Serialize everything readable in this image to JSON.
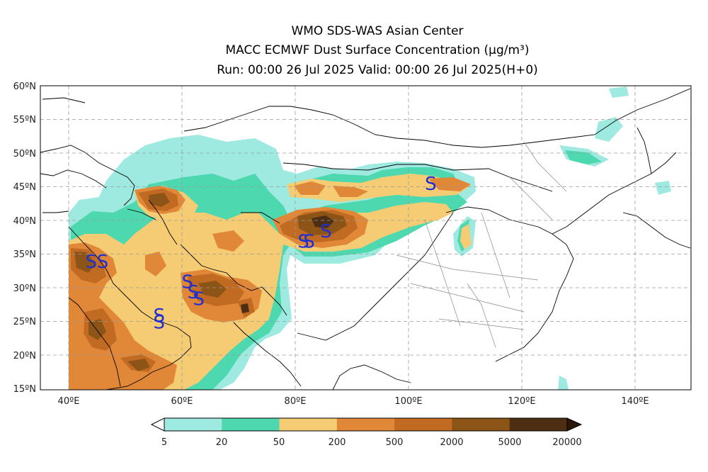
{
  "title": {
    "line1": "WMO SDS-WAS Asian Center",
    "line2": "MACC ECMWF Dust Surface Concentration (μg/m³)",
    "line3": "Run: 00:00 26 Jul 2025     Valid: 00:00 26 Jul 2025(H+0)"
  },
  "map": {
    "lon_range": [
      35,
      150
    ],
    "lat_range": [
      15,
      60
    ],
    "lon_ticks": [
      "40ºE",
      "60ºE",
      "80ºE",
      "100ºE",
      "120ºE",
      "140ºE"
    ],
    "lat_ticks": [
      "60ºN",
      "55ºN",
      "50ºN",
      "45ºN",
      "40ºN",
      "35ºN",
      "30ºN",
      "25ºN",
      "20ºN",
      "15ºN"
    ],
    "grid": "dashed",
    "storm_symbol": "S",
    "storm_symbol_color": "#1f2fd0",
    "storm_markers": [
      {
        "lon": 44,
        "lat": 34
      },
      {
        "lon": 46,
        "lat": 34
      },
      {
        "lon": 56,
        "lat": 26
      },
      {
        "lon": 56,
        "lat": 25
      },
      {
        "lon": 61,
        "lat": 31
      },
      {
        "lon": 62,
        "lat": 29.5
      },
      {
        "lon": 63,
        "lat": 28.5
      },
      {
        "lon": 81.5,
        "lat": 37
      },
      {
        "lon": 82.5,
        "lat": 37
      },
      {
        "lon": 85.5,
        "lat": 38.5
      },
      {
        "lon": 104,
        "lat": 45.5
      }
    ]
  },
  "colorbar": {
    "labels": [
      "5",
      "20",
      "50",
      "200",
      "500",
      "2000",
      "5000",
      "20000"
    ],
    "colors": [
      "#9eeae0",
      "#4dd8b0",
      "#f5cc74",
      "#e08838",
      "#c06a22",
      "#8c5416",
      "#4d2e12"
    ],
    "under_color": "#ffffff",
    "over_color": "#2a170a"
  }
}
